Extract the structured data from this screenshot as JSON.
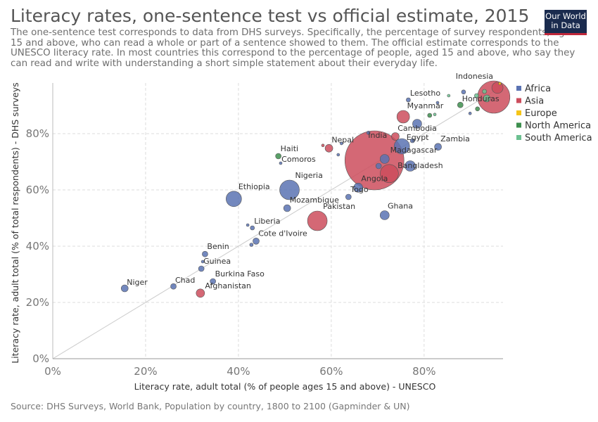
{
  "header": {
    "title": "Literacy rates, one-sentence test vs official estimate, 2015",
    "subtitle": "The one-sentence test corresponds to data from DHS surveys. Specifically, the percentage of survey respondents, aged 15 and above, who can read a whole or part of a sentence showed to them. The official estimate corresponds to the UNESCO literacy rate. In most countries this correspond to the percentage of people, aged 15 and above, who say they can read and write with understanding a short simple statement about their everyday life.",
    "logo_line1": "Our World",
    "logo_line2": "in Data"
  },
  "footer": {
    "source": "Source: DHS Surveys, World Bank, Population by country, 1800 to 2100 (Gapminder & UN)"
  },
  "colors": {
    "Africa": "#5b73b3",
    "Asia": "#cc4d5d",
    "Europe": "#f5c518",
    "North America": "#3d8f4e",
    "South America": "#6cc191"
  },
  "chart_data": {
    "type": "scatter",
    "title": "Literacy rates, one-sentence test vs official estimate, 2015",
    "xlabel": "Literacy rate, adult total (% of people ages 15 and above) - UNESCO",
    "ylabel": "Literacy rate, adult total (% of total respondents) - DHS surveys",
    "xlim": [
      0,
      97
    ],
    "ylim": [
      0,
      98
    ],
    "xticks": [
      0,
      20,
      40,
      60,
      80
    ],
    "yticks": [
      0,
      20,
      40,
      60,
      80
    ],
    "tick_format": "%",
    "grid": true,
    "diagonal_line": true,
    "legend": {
      "placement": "right",
      "entries": [
        "Africa",
        "Asia",
        "Europe",
        "North America",
        "South America"
      ]
    },
    "size_variable": "population",
    "points": [
      {
        "label": "Niger",
        "x": 15.5,
        "y": 25,
        "region": "Africa",
        "size": 5
      },
      {
        "label": "Chad",
        "x": 26,
        "y": 25.7,
        "region": "Africa",
        "size": 4
      },
      {
        "label": "Afghanistan",
        "x": 31.8,
        "y": 23.3,
        "region": "Asia",
        "size": 6
      },
      {
        "label": "Burkina Faso",
        "x": 34.5,
        "y": 27.5,
        "region": "Africa",
        "size": 4
      },
      {
        "label": "Guinea",
        "x": 32,
        "y": 32,
        "region": "Africa",
        "size": 4
      },
      {
        "label": "",
        "x": 32.3,
        "y": 34.5,
        "region": "Africa",
        "size": 2
      },
      {
        "label": "Benin",
        "x": 32.8,
        "y": 37.2,
        "region": "Africa",
        "size": 4
      },
      {
        "label": "Liberia",
        "x": 43,
        "y": 46.5,
        "region": "Africa",
        "size": 3
      },
      {
        "label": "",
        "x": 42,
        "y": 47.5,
        "region": "Africa",
        "size": 2
      },
      {
        "label": "",
        "x": 42.8,
        "y": 40.5,
        "region": "Africa",
        "size": 2.5
      },
      {
        "label": "Cote d'Ivoire",
        "x": 43.8,
        "y": 41.8,
        "region": "Africa",
        "size": 4.5
      },
      {
        "label": "Ethiopia",
        "x": 39,
        "y": 56.8,
        "region": "Africa",
        "size": 11
      },
      {
        "label": "Mozambique",
        "x": 50.5,
        "y": 53.5,
        "region": "Africa",
        "size": 5
      },
      {
        "label": "Nigeria",
        "x": 51,
        "y": 60,
        "region": "Africa",
        "size": 14
      },
      {
        "label": "Pakistan",
        "x": 57,
        "y": 49,
        "region": "Asia",
        "size": 14
      },
      {
        "label": "Haiti",
        "x": 48.6,
        "y": 72,
        "region": "North America",
        "size": 4
      },
      {
        "label": "Comoros",
        "x": 49.1,
        "y": 69.5,
        "region": "Africa",
        "size": 2
      },
      {
        "label": "Nepal",
        "x": 59.5,
        "y": 74.8,
        "region": "Asia",
        "size": 5.5
      },
      {
        "label": "",
        "x": 58.2,
        "y": 75.8,
        "region": "Asia",
        "size": 2
      },
      {
        "label": "",
        "x": 62.2,
        "y": 76.5,
        "region": "Africa",
        "size": 2
      },
      {
        "label": "",
        "x": 61.5,
        "y": 72.5,
        "region": "Africa",
        "size": 2
      },
      {
        "label": "",
        "x": 68,
        "y": 80.3,
        "region": "Africa",
        "size": 2.5
      },
      {
        "label": "Togo",
        "x": 63.7,
        "y": 57.5,
        "region": "Africa",
        "size": 4
      },
      {
        "label": "Angola",
        "x": 65.8,
        "y": 60.8,
        "region": "Africa",
        "size": 6.5
      },
      {
        "label": "Ghana",
        "x": 71.5,
        "y": 51,
        "region": "Africa",
        "size": 6.5
      },
      {
        "label": "India",
        "x": 69.3,
        "y": 70.5,
        "region": "Asia",
        "size": 42
      },
      {
        "label": "Madagascar",
        "x": 71.5,
        "y": 71,
        "region": "Africa",
        "size": 6.5
      },
      {
        "label": "",
        "x": 70.2,
        "y": 68.5,
        "region": "Africa",
        "size": 4
      },
      {
        "label": "Bangladesh",
        "x": 72.5,
        "y": 65.8,
        "region": "Asia",
        "size": 13
      },
      {
        "label": "",
        "x": 77,
        "y": 68.5,
        "region": "Africa",
        "size": 7.5
      },
      {
        "label": "Egypt",
        "x": 75.2,
        "y": 75.5,
        "region": "Africa",
        "size": 11
      },
      {
        "label": "Cambodia",
        "x": 73.8,
        "y": 79,
        "region": "Asia",
        "size": 5.5
      },
      {
        "label": "",
        "x": 77.5,
        "y": 77.5,
        "region": "Africa",
        "size": 3
      },
      {
        "label": "Zambia",
        "x": 83,
        "y": 75.3,
        "region": "Africa",
        "size": 5
      },
      {
        "label": "Myanmar",
        "x": 75.5,
        "y": 86,
        "region": "Asia",
        "size": 9
      },
      {
        "label": "",
        "x": 78.5,
        "y": 83.5,
        "region": "Africa",
        "size": 6.5
      },
      {
        "label": "Lesotho",
        "x": 76.6,
        "y": 92,
        "region": "Africa",
        "size": 3
      },
      {
        "label": "",
        "x": 81.2,
        "y": 86.5,
        "region": "North America",
        "size": 3
      },
      {
        "label": "",
        "x": 82.3,
        "y": 86.8,
        "region": "South America",
        "size": 2
      },
      {
        "label": "",
        "x": 82.9,
        "y": 91,
        "region": "Africa",
        "size": 2
      },
      {
        "label": "",
        "x": 85.3,
        "y": 93.5,
        "region": "South America",
        "size": 2
      },
      {
        "label": "Honduras",
        "x": 87.8,
        "y": 90.2,
        "region": "North America",
        "size": 4
      },
      {
        "label": "",
        "x": 89.9,
        "y": 87.2,
        "region": "Africa",
        "size": 2
      },
      {
        "label": "",
        "x": 91.5,
        "y": 88.8,
        "region": "North America",
        "size": 3
      },
      {
        "label": "",
        "x": 88.5,
        "y": 94.8,
        "region": "Africa",
        "size": 3
      },
      {
        "label": "",
        "x": 91.3,
        "y": 93.5,
        "region": "South America",
        "size": 3
      },
      {
        "label": "",
        "x": 93,
        "y": 95,
        "region": "South America",
        "size": 3
      },
      {
        "label": "",
        "x": 93.5,
        "y": 92.5,
        "region": "South America",
        "size": 5
      },
      {
        "label": "Indonesia",
        "x": 95,
        "y": 93,
        "region": "Asia",
        "size": 23
      },
      {
        "label": "",
        "x": 95.8,
        "y": 96.3,
        "region": "Asia",
        "size": 8
      },
      {
        "label": "",
        "x": 96.3,
        "y": 97.8,
        "region": "Europe",
        "size": 2
      }
    ]
  }
}
